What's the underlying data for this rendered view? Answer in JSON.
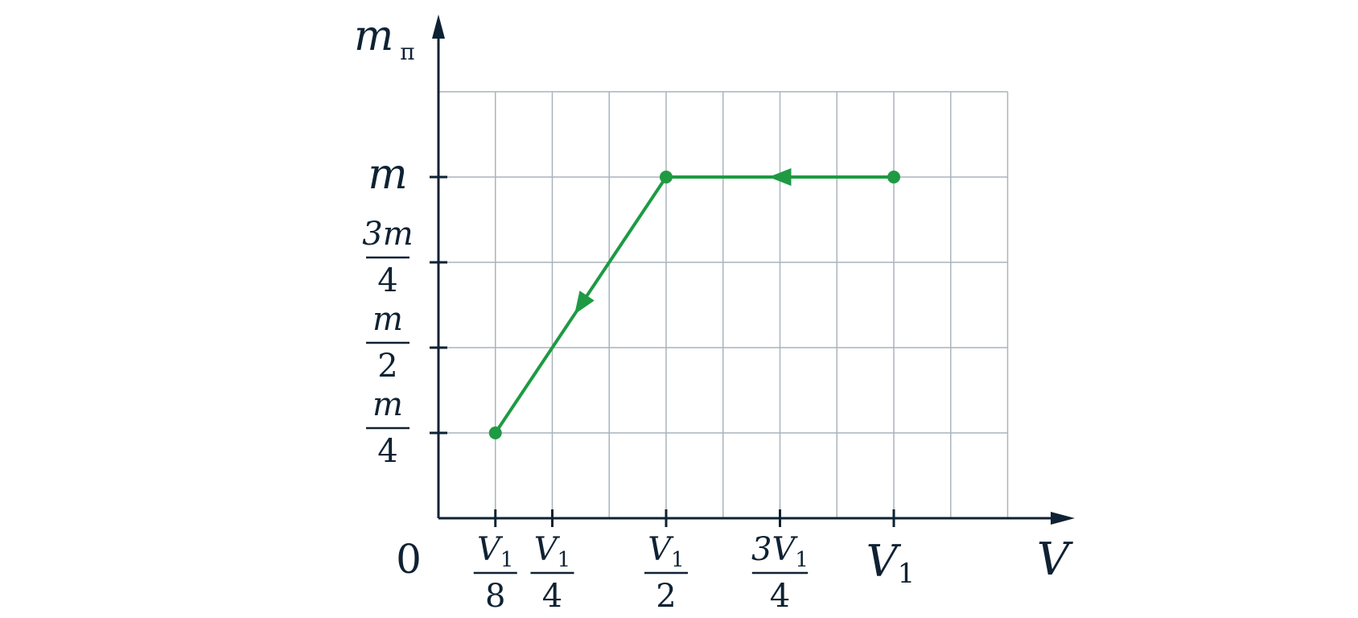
{
  "colors": {
    "series": "#1e9a43",
    "axis": "#0f2233",
    "grid": "#aab4bb"
  },
  "chart_data": {
    "type": "line",
    "xlabel": {
      "main": "V"
    },
    "ylabel": {
      "main": "m",
      "sub": "п"
    },
    "origin_label": "0",
    "xlim": [
      0,
      1.25
    ],
    "ylim": [
      0,
      1.25
    ],
    "grid": true,
    "grid_step_x": 0.125,
    "grid_step_y": 0.25,
    "x_ticks": [
      {
        "value": 0.125,
        "num": "V",
        "num_sub": "1",
        "den": "8"
      },
      {
        "value": 0.25,
        "num": "V",
        "num_sub": "1",
        "den": "4"
      },
      {
        "value": 0.5,
        "num": "V",
        "num_sub": "1",
        "den": "2"
      },
      {
        "value": 0.75,
        "num": "3V",
        "num_sub": "1",
        "den": "4"
      },
      {
        "value": 1.0,
        "plain": "V",
        "plain_sub": "1"
      }
    ],
    "y_ticks": [
      {
        "value": 0.25,
        "num": "m",
        "den": "4"
      },
      {
        "value": 0.5,
        "num": "m",
        "den": "2"
      },
      {
        "value": 0.75,
        "num": "3m",
        "den": "4"
      },
      {
        "value": 1.0,
        "plain": "m"
      }
    ],
    "series": [
      {
        "points": [
          {
            "x": 1.0,
            "y": 1.0
          },
          {
            "x": 0.5,
            "y": 1.0
          },
          {
            "x": 0.125,
            "y": 0.25
          }
        ],
        "direction_arrows": true
      }
    ]
  }
}
